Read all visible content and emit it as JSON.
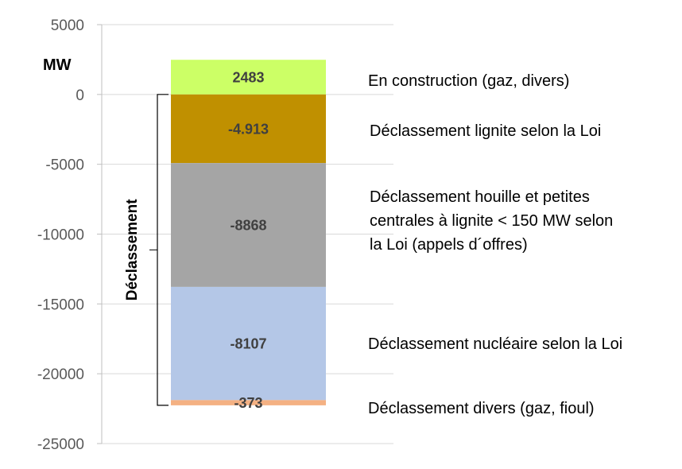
{
  "chart_data": {
    "type": "bar",
    "stacked": true,
    "unit_label": "MW",
    "ylim": [
      -25000,
      5000
    ],
    "yticks": [
      5000,
      0,
      -5000,
      -10000,
      -15000,
      -20000,
      -25000
    ],
    "grid": true,
    "segments": [
      {
        "value": 2483,
        "label": "2483",
        "color": "#CCFF66",
        "annotation": [
          "En construction (gaz, divers)"
        ]
      },
      {
        "value": -4913,
        "label": "-4.913",
        "color": "#C09000",
        "annotation": [
          "Déclassement lignite selon la Loi"
        ]
      },
      {
        "value": -8868,
        "label": "-8868",
        "color": "#A5A5A5",
        "annotation": [
          "Déclassement houille et petites",
          "centrales à lignite < 150 MW selon",
          "la Loi (appels d´offres)"
        ]
      },
      {
        "value": -8107,
        "label": "-8107",
        "color": "#B4C7E7",
        "annotation": [
          "Déclassement nucléaire selon la Loi"
        ]
      },
      {
        "value": -373,
        "label": "-373",
        "color": "#F4B183",
        "annotation": [
          "Déclassement divers (gaz, fioul)"
        ]
      }
    ],
    "bracket_label": "Déclassement"
  }
}
